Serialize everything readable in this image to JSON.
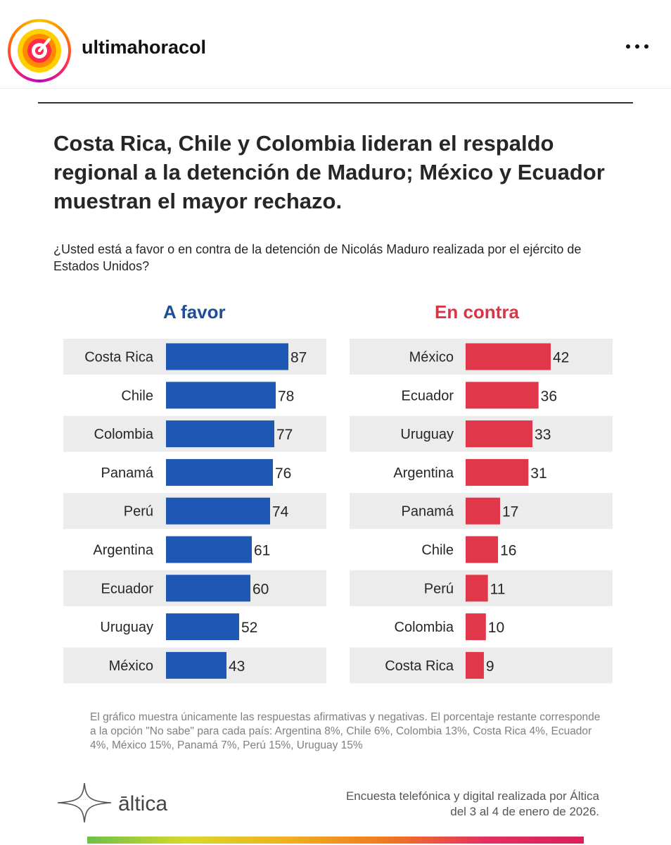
{
  "post": {
    "username": "ultimahoracol",
    "more_icon": "more-horizontal-icon"
  },
  "infographic": {
    "headline": "Costa Rica, Chile y Colombia lideran el respaldo regional a la detención de Maduro; México y Ecuador muestran el mayor rechazo.",
    "question": "¿Usted está a favor o en contra de la detención de Nicolás Maduro realizada por el ejército de Estados Unidos?",
    "footnote": "El gráfico muestra únicamente las respuestas afirmativas y negativas. El porcentaje restante corresponde a la opción \"No sabe\" para cada país: Argentina 8%, Chile 6%, Colombia 13%, Costa Rica 4%, Ecuador 4%, México 15%, Panamá 7%, Perú 15%, Uruguay 15%",
    "brand": "āltica",
    "survey_note": "Encuesta telefónica y digital realizada por Áltica del 3 al 4 de enero de 2026."
  },
  "colors": {
    "favor": "#1f57b5",
    "contra": "#e0384a",
    "row_band": "#ececec"
  },
  "chart_data": [
    {
      "type": "bar",
      "orientation": "horizontal",
      "title": "A favor",
      "categories": [
        "Costa Rica",
        "Chile",
        "Colombia",
        "Panamá",
        "Perú",
        "Argentina",
        "Ecuador",
        "Uruguay",
        "México"
      ],
      "values": [
        87,
        78,
        77,
        76,
        74,
        61,
        60,
        52,
        43
      ],
      "xlim": [
        0,
        100
      ]
    },
    {
      "type": "bar",
      "orientation": "horizontal",
      "title": "En contra",
      "categories": [
        "México",
        "Ecuador",
        "Uruguay",
        "Argentina",
        "Panamá",
        "Chile",
        "Perú",
        "Colombia",
        "Costa Rica"
      ],
      "values": [
        42,
        36,
        33,
        31,
        17,
        16,
        11,
        10,
        9
      ],
      "xlim": [
        0,
        100
      ]
    }
  ]
}
